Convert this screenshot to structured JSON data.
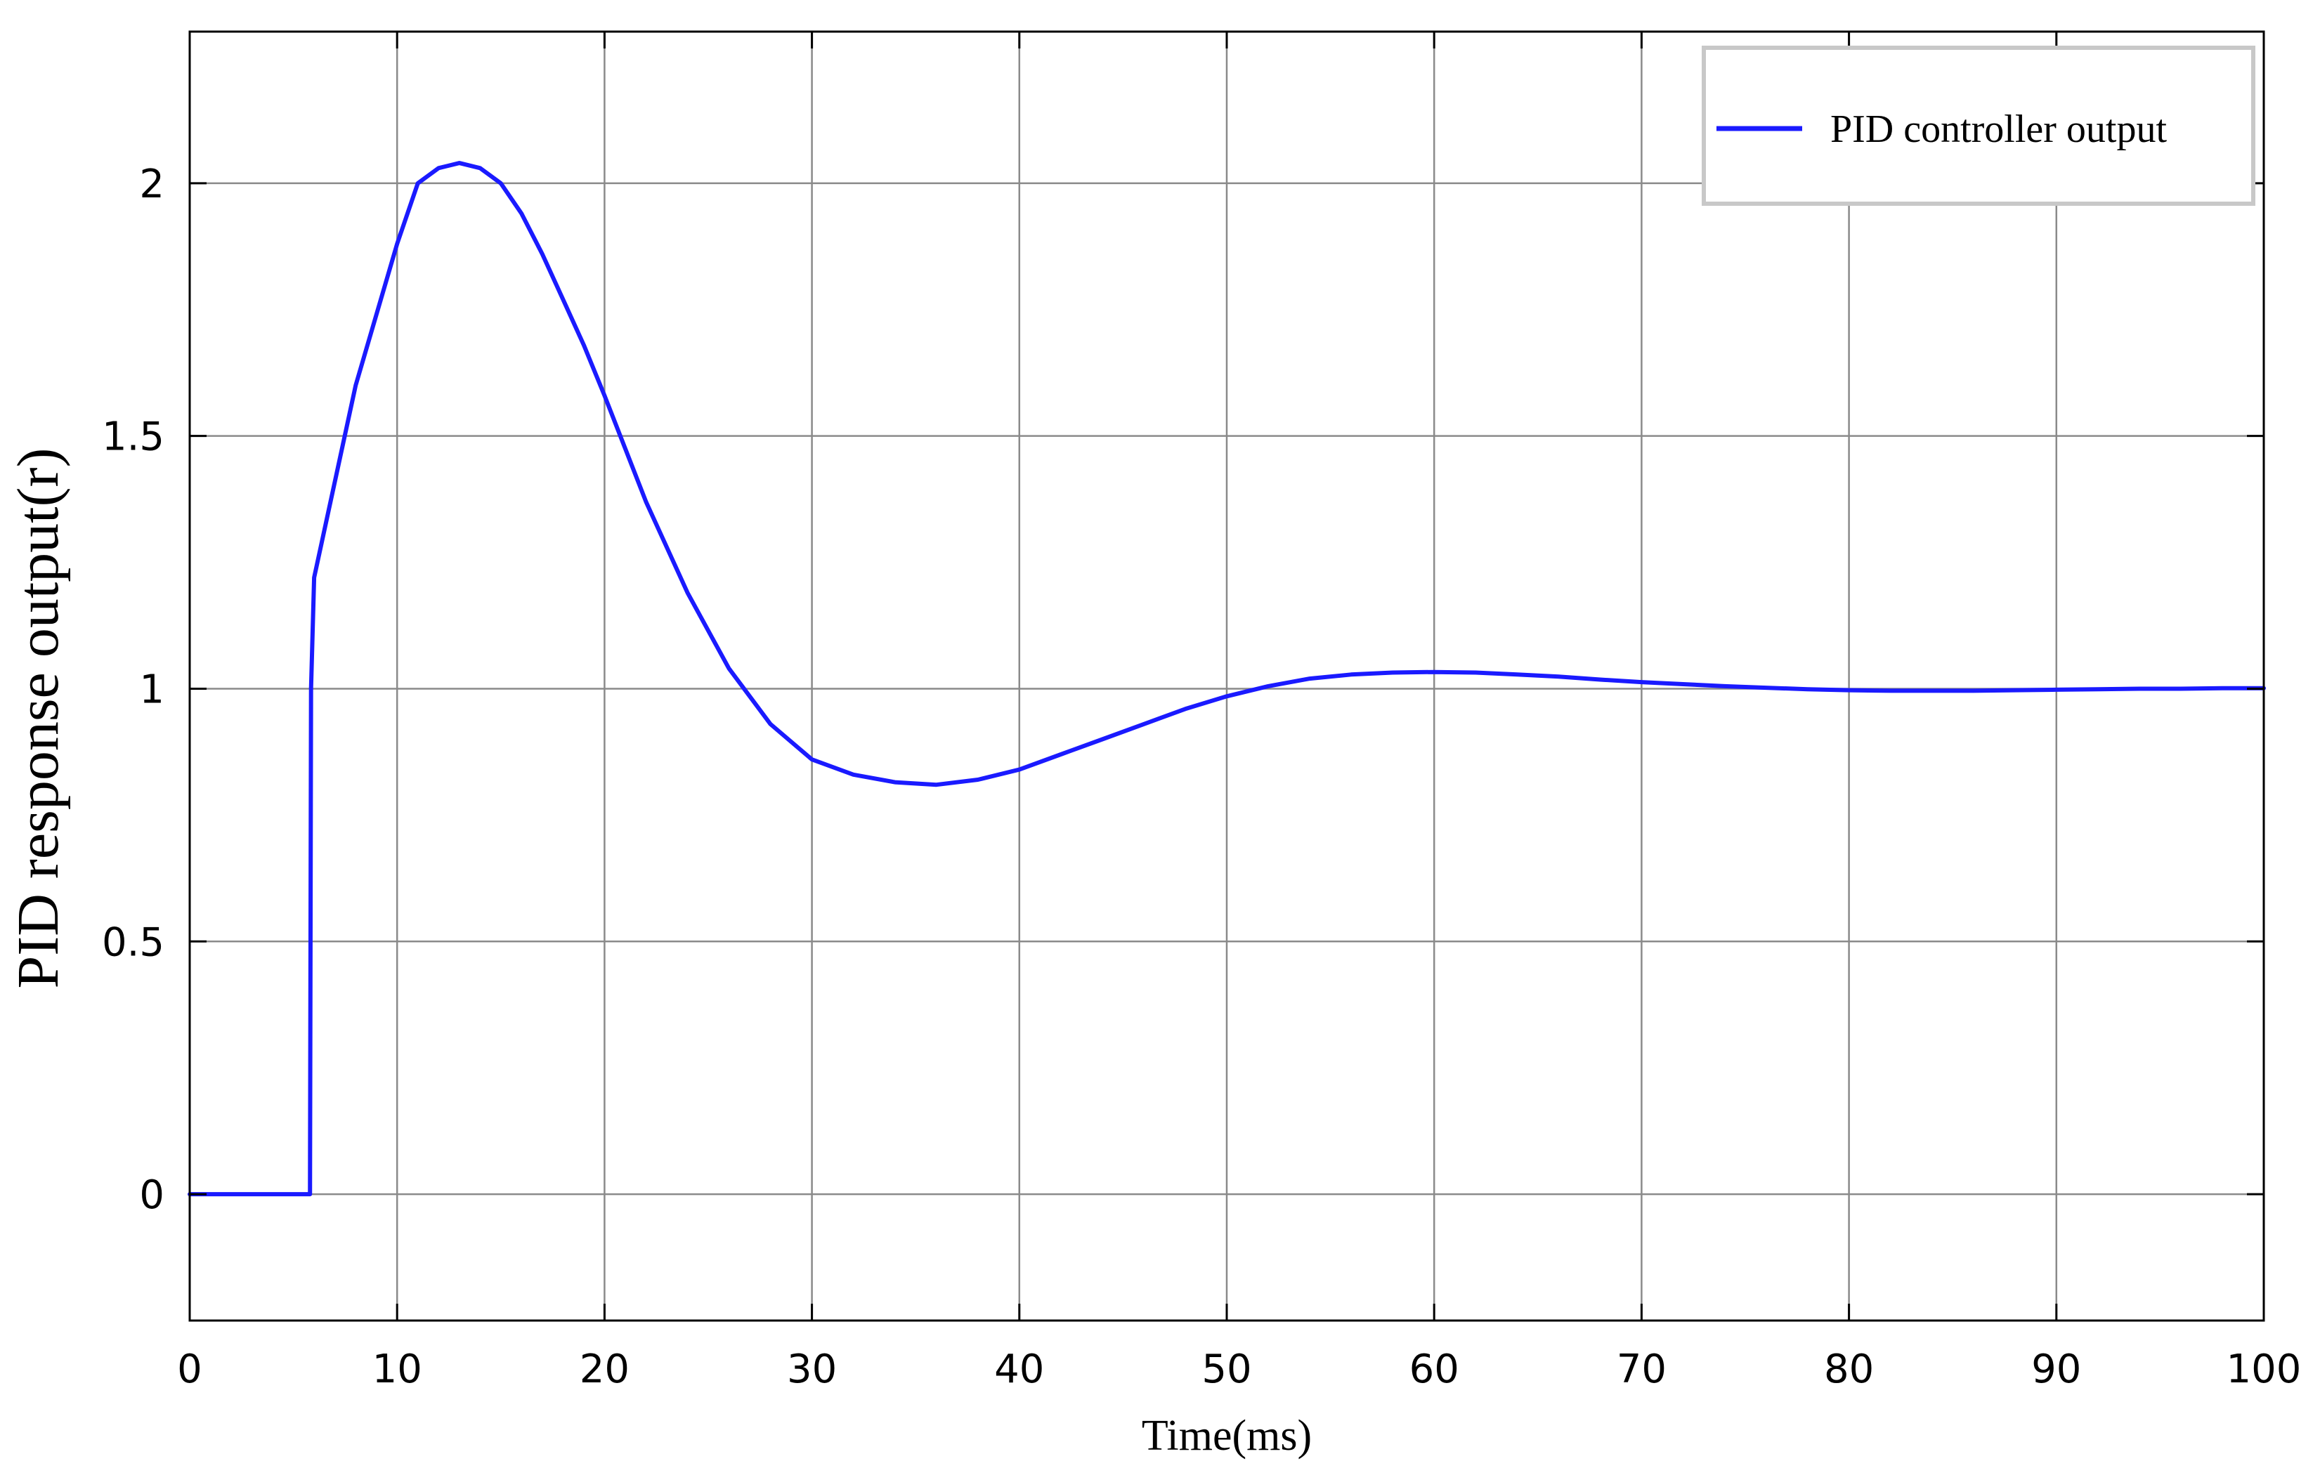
{
  "chart_data": {
    "type": "line",
    "title": "",
    "xlabel": "Time(ms)",
    "ylabel": "PID response output(r)",
    "xlim": [
      0,
      100
    ],
    "ylim": [
      -0.25,
      2.3
    ],
    "xticks": [
      0,
      10,
      20,
      30,
      40,
      50,
      60,
      70,
      80,
      90,
      100
    ],
    "yticks": [
      0,
      0.5,
      1,
      1.5,
      2
    ],
    "xtick_labels": [
      "0",
      "10",
      "20",
      "30",
      "40",
      "50",
      "60",
      "70",
      "80",
      "90",
      "100"
    ],
    "ytick_labels": [
      "0",
      "0.5",
      "1",
      "1.5",
      "2"
    ],
    "grid": true,
    "legend_position": "top-right",
    "series": [
      {
        "name": "PID controller output",
        "color": "#1a1aff",
        "points": [
          [
            0,
            0
          ],
          [
            5.8,
            0
          ],
          [
            5.85,
            1.0
          ],
          [
            6,
            1.22
          ],
          [
            8,
            1.6
          ],
          [
            10,
            1.88
          ],
          [
            11,
            2.0
          ],
          [
            12,
            2.03
          ],
          [
            13,
            2.04
          ],
          [
            14,
            2.03
          ],
          [
            15,
            2.0
          ],
          [
            16,
            1.94
          ],
          [
            17,
            1.86
          ],
          [
            18,
            1.77
          ],
          [
            19,
            1.68
          ],
          [
            20,
            1.58
          ],
          [
            22,
            1.37
          ],
          [
            24,
            1.19
          ],
          [
            26,
            1.04
          ],
          [
            28,
            0.93
          ],
          [
            30,
            0.86
          ],
          [
            32,
            0.83
          ],
          [
            34,
            0.815
          ],
          [
            36,
            0.81
          ],
          [
            38,
            0.82
          ],
          [
            40,
            0.84
          ],
          [
            42,
            0.87
          ],
          [
            44,
            0.9
          ],
          [
            46,
            0.93
          ],
          [
            48,
            0.96
          ],
          [
            50,
            0.985
          ],
          [
            52,
            1.005
          ],
          [
            54,
            1.02
          ],
          [
            56,
            1.028
          ],
          [
            58,
            1.032
          ],
          [
            60,
            1.033
          ],
          [
            62,
            1.032
          ],
          [
            64,
            1.028
          ],
          [
            66,
            1.024
          ],
          [
            68,
            1.018
          ],
          [
            70,
            1.013
          ],
          [
            72,
            1.009
          ],
          [
            74,
            1.005
          ],
          [
            76,
            1.002
          ],
          [
            78,
            0.999
          ],
          [
            80,
            0.997
          ],
          [
            82,
            0.996
          ],
          [
            84,
            0.996
          ],
          [
            86,
            0.996
          ],
          [
            88,
            0.997
          ],
          [
            90,
            0.998
          ],
          [
            92,
            0.999
          ],
          [
            94,
            1.0
          ],
          [
            96,
            1.0
          ],
          [
            98,
            1.001
          ],
          [
            100,
            1.001
          ]
        ]
      }
    ]
  }
}
